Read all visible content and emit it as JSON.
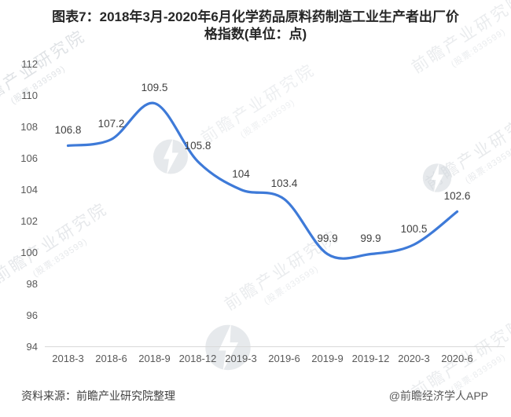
{
  "header": {
    "title_line1": "图表7：2018年3月-2020年6月化学药品原料药制造工业生产者出厂价",
    "title_line2": "格指数(单位：点)"
  },
  "chart_data": {
    "type": "line",
    "title": "2018年3月-2020年6月化学药品原料药制造工业生产者出厂价格指数",
    "unit": "点",
    "categories": [
      "2018-3",
      "2018-6",
      "2018-9",
      "2018-12",
      "2019-3",
      "2019-6",
      "2019-9",
      "2019-12",
      "2020-3",
      "2020-6"
    ],
    "values": [
      106.8,
      107.2,
      109.5,
      105.8,
      104,
      103.4,
      99.9,
      99.9,
      100.5,
      102.6
    ],
    "ylim": [
      94,
      112
    ],
    "y_ticks": [
      94,
      96,
      98,
      100,
      102,
      104,
      106,
      108,
      110,
      112
    ],
    "grid": false,
    "legend": "none",
    "smooth": true,
    "data_labels": true,
    "line_color": "#3e7ad8"
  },
  "footer": {
    "source": "资料来源：前瞻产业研究院整理",
    "credit": "@前瞻经济学人APP"
  },
  "watermark": {
    "line1": "前瞻产业研究院",
    "line2": "(股票:839599)",
    "logo_name": "qianzhan-logo"
  },
  "colors": {
    "line": "#3e7ad8",
    "axis_text": "#595959",
    "data_label_text": "#404040",
    "baseline": "#d9d9d9",
    "title_text": "#262626"
  }
}
